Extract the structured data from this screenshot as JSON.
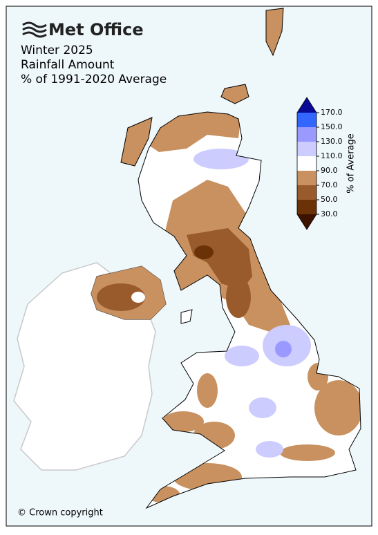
{
  "header": {
    "logo": "Met Office",
    "title_lines": [
      "Winter 2025",
      "Rainfall Amount",
      "% of 1991-2020 Average"
    ]
  },
  "colorbar": {
    "label": "% of Average",
    "ticks": [
      {
        "value": 170,
        "label": "170.0"
      },
      {
        "value": 150,
        "label": "150.0"
      },
      {
        "value": 130,
        "label": "130.0"
      },
      {
        "value": 110,
        "label": "110.0"
      },
      {
        "value": 90,
        "label": "90.0"
      },
      {
        "value": 70,
        "label": "70.0"
      },
      {
        "value": 50,
        "label": "50.0"
      },
      {
        "value": 30,
        "label": "30.0"
      }
    ],
    "colors": [
      "#0a0a96",
      "#3366ff",
      "#9999ff",
      "#ccccff",
      "#ffffff",
      "#c8915f",
      "#9a5b2c",
      "#6b3208",
      "#3d1300"
    ]
  },
  "footer": {
    "copyright": "© Crown copyright"
  }
}
